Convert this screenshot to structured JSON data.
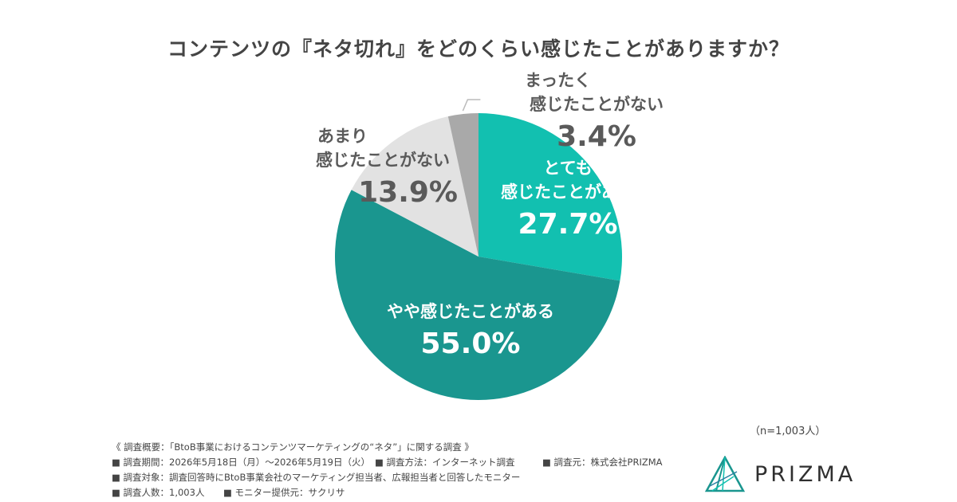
{
  "title": "コンテンツの『ネタ切れ』をどのくらい感じたことがありますか？",
  "chart_data": {
    "type": "pie",
    "title": "コンテンツの『ネタ切れ』をどのくらい感じたことがありますか？",
    "slices": [
      {
        "label_line1": "とても",
        "label_line2": "感じたことがある",
        "value": 27.7,
        "value_text": "27.7%",
        "color": "#12c0b0"
      },
      {
        "label_line1": "",
        "label_line2": "やや感じたことがある",
        "value": 55.0,
        "value_text": "55.0%",
        "color": "#1a968f"
      },
      {
        "label_line1": "あまり",
        "label_line2": "感じたことがない",
        "value": 13.9,
        "value_text": "13.9%",
        "color": "#e2e2e2"
      },
      {
        "label_line1": "まったく",
        "label_line2": "感じたことがない",
        "value": 3.4,
        "value_text": "3.4%",
        "color": "#a9a9a9"
      }
    ]
  },
  "sample_size": "（n=1,003人）",
  "notes": {
    "overview": "《 調査概要：「BtoB事業におけるコンテンツマーケティングの“ネタ”」に関する調査 》",
    "period": "■ 調査期間：2026年5月18日（月）～2026年5月19日（火）",
    "method": "■ 調査方法：インターネット調査",
    "source": "■ 調査元：株式会社PRIZMA",
    "target": "■ 調査対象：調査回答時にBtoB事業会社のマーケティング担当者、広報担当者と回答したモニター",
    "count": "■ 調査人数：1,003人",
    "provider": "■ モニター提供元：サクリサ"
  },
  "logo": {
    "text": "PRIZMA",
    "icon": "prism-logo-icon",
    "color": "#1a968f"
  }
}
